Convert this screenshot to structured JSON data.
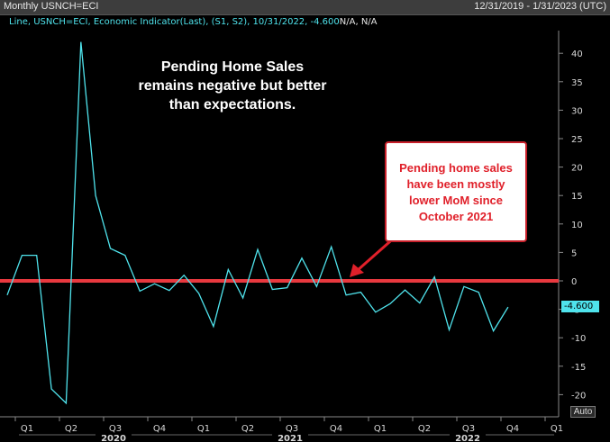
{
  "window": {
    "title": "Monthly USNCH=ECI",
    "date_range": "12/31/2019 - 1/31/2023 (UTC)"
  },
  "legend": {
    "text": "Line, USNCH=ECI, Economic Indicator(Last), (S1, S2), 10/31/2022, -4.600",
    "suffix": "N/A, N/A"
  },
  "annotations": {
    "main": [
      "Pending Home Sales",
      "remains negative but better",
      "than expectations."
    ],
    "box": [
      "Pending home sales",
      "have been mostly",
      "lower MoM since",
      "October 2021"
    ]
  },
  "last_value_label": "-4.600",
  "auto_button": "Auto",
  "colors": {
    "series": "#4fe3ec",
    "zero_line": "#e8393f",
    "annotation_red": "#e0202a",
    "background": "#000000"
  },
  "chart_data": {
    "type": "line",
    "title": "",
    "xlabel": "",
    "ylabel": "",
    "ylim": [
      -22,
      44
    ],
    "yticks": [
      40,
      35,
      30,
      25,
      20,
      15,
      10,
      5,
      0,
      -5,
      -10,
      -15,
      -20
    ],
    "x_ticks": [
      "Q1",
      "Q2",
      "Q3",
      "Q4",
      "Q1",
      "Q2",
      "Q3",
      "Q4",
      "Q1",
      "Q2",
      "Q3",
      "Q4",
      "Q1"
    ],
    "x_years": [
      "2020",
      "2021",
      "2022"
    ],
    "x": [
      "2019-12",
      "2020-01",
      "2020-02",
      "2020-03",
      "2020-04",
      "2020-05",
      "2020-06",
      "2020-07",
      "2020-08",
      "2020-09",
      "2020-10",
      "2020-11",
      "2020-12",
      "2021-01",
      "2021-02",
      "2021-03",
      "2021-04",
      "2021-05",
      "2021-06",
      "2021-07",
      "2021-08",
      "2021-09",
      "2021-10",
      "2021-11",
      "2021-12",
      "2022-01",
      "2022-02",
      "2022-03",
      "2022-04",
      "2022-05",
      "2022-06",
      "2022-07",
      "2022-08",
      "2022-09",
      "2022-10"
    ],
    "series": [
      {
        "values": [
          -2.5,
          4.5,
          4.5,
          -19,
          -21.5,
          42,
          15,
          5.7,
          4.5,
          -1.8,
          -0.5,
          -1.7,
          1,
          -2.2,
          -8,
          2,
          -3,
          5.5,
          -1.5,
          -1.2,
          4,
          -1,
          6,
          -2.5,
          -2,
          -5.5,
          -4,
          -1.6,
          -3.9,
          0.7,
          -8.6,
          -1,
          -2,
          -8.8,
          -4.6
        ]
      }
    ],
    "reference_line": 0,
    "grid": false,
    "legend_position": "top-left"
  }
}
